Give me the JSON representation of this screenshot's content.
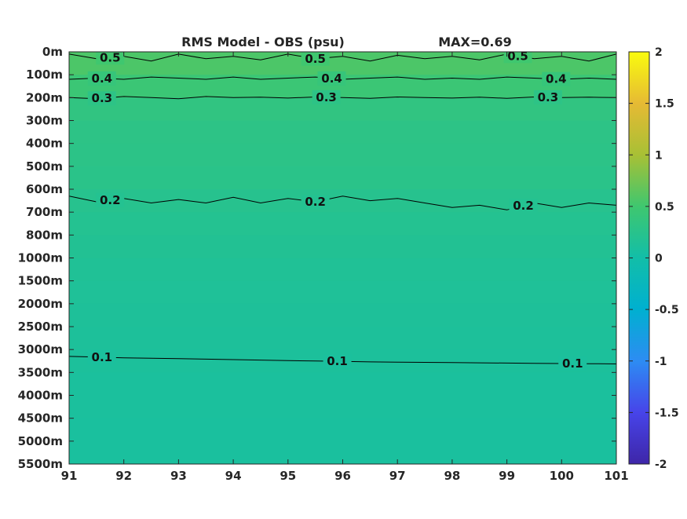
{
  "chart_data": {
    "type": "heatmap",
    "title": "RMS Model - OBS (psu)",
    "max_label": "MAX=0.69",
    "x_ticks": [
      "91",
      "92",
      "93",
      "94",
      "95",
      "96",
      "97",
      "98",
      "99",
      "100",
      "101"
    ],
    "xlim": [
      91,
      101
    ],
    "y_ticks": [
      "0m",
      "100m",
      "200m",
      "300m",
      "400m",
      "500m",
      "600m",
      "700m",
      "800m",
      "1000m",
      "1500m",
      "2000m",
      "2500m",
      "3000m",
      "3500m",
      "4000m",
      "4500m",
      "5000m",
      "5500m"
    ],
    "grid": false,
    "colorbar": {
      "ticks": [
        "2",
        "1.5",
        "1",
        "0.5",
        "0",
        "-0.5",
        "-1",
        "-1.5",
        "-2"
      ],
      "range": [
        -2,
        2
      ],
      "colormap": "parula",
      "stops": [
        "#3e26a8",
        "#4744e9",
        "#2d8cf3",
        "#00b0d0",
        "#12bea8",
        "#3fc76f",
        "#a8c035",
        "#e6ba34",
        "#f9fb0e"
      ]
    },
    "depth_levels": [
      "0m",
      "100m",
      "200m",
      "300m",
      "400m",
      "500m",
      "600m",
      "700m",
      "800m",
      "1000m",
      "1500m",
      "2000m",
      "2500m",
      "3000m",
      "3500m",
      "4000m",
      "4500m",
      "5000m",
      "5500m"
    ],
    "band_values": [
      0.56,
      0.45,
      0.34,
      0.3,
      0.29,
      0.27,
      0.23,
      0.2,
      0.18,
      0.16,
      0.14,
      0.13,
      0.12,
      0.11,
      0.1,
      0.1,
      0.09,
      0.09
    ],
    "contours": [
      {
        "level": 0.5,
        "depth_levels": [
          0.1,
          0.3,
          0.2,
          0.4,
          0.1,
          0.3,
          0.2,
          0.35,
          0.1,
          0.3,
          0.2,
          0.4,
          0.15,
          0.3,
          0.2,
          0.35,
          0.1,
          0.3,
          0.2,
          0.4,
          0.1
        ],
        "labels": [
          {
            "x": 91.75,
            "text": "0.5"
          },
          {
            "x": 95.5,
            "text": "0.5"
          },
          {
            "x": 99.2,
            "text": "0.5"
          }
        ]
      },
      {
        "level": 0.4,
        "depth_levels": [
          1.2,
          1.15,
          1.2,
          1.1,
          1.15,
          1.2,
          1.1,
          1.2,
          1.15,
          1.1,
          1.2,
          1.15,
          1.1,
          1.2,
          1.15,
          1.2,
          1.1,
          1.15,
          1.2,
          1.15,
          1.2
        ],
        "labels": [
          {
            "x": 91.6,
            "text": "0.4"
          },
          {
            "x": 95.8,
            "text": "0.4"
          },
          {
            "x": 99.9,
            "text": "0.4"
          }
        ]
      },
      {
        "level": 0.3,
        "depth_levels": [
          2.0,
          2.05,
          1.95,
          2.0,
          2.05,
          1.95,
          2.0,
          1.98,
          2.02,
          1.97,
          2.0,
          2.03,
          1.97,
          2.0,
          2.02,
          1.98,
          2.03,
          1.97,
          2.0,
          1.98,
          2.0
        ],
        "labels": [
          {
            "x": 91.6,
            "text": "0.3"
          },
          {
            "x": 95.7,
            "text": "0.3"
          },
          {
            "x": 99.75,
            "text": "0.3"
          }
        ]
      },
      {
        "level": 0.2,
        "depth_levels": [
          6.3,
          6.55,
          6.4,
          6.6,
          6.45,
          6.6,
          6.35,
          6.6,
          6.4,
          6.55,
          6.3,
          6.5,
          6.4,
          6.6,
          6.8,
          6.7,
          6.9,
          6.6,
          6.8,
          6.6,
          6.7
        ],
        "labels": [
          {
            "x": 91.75,
            "text": "0.2"
          },
          {
            "x": 95.5,
            "text": "0.2"
          },
          {
            "x": 99.3,
            "text": "0.2"
          }
        ]
      },
      {
        "level": 0.1,
        "depth_levels": [
          13.3,
          13.33,
          13.36,
          13.38,
          13.4,
          13.42,
          13.44,
          13.46,
          13.48,
          13.5,
          13.52,
          13.54,
          13.55,
          13.56,
          13.57,
          13.58,
          13.59,
          13.6,
          13.61,
          13.62,
          13.63
        ],
        "labels": [
          {
            "x": 91.6,
            "text": "0.1"
          },
          {
            "x": 95.9,
            "text": "0.1"
          },
          {
            "x": 100.2,
            "text": "0.1"
          }
        ]
      }
    ]
  }
}
